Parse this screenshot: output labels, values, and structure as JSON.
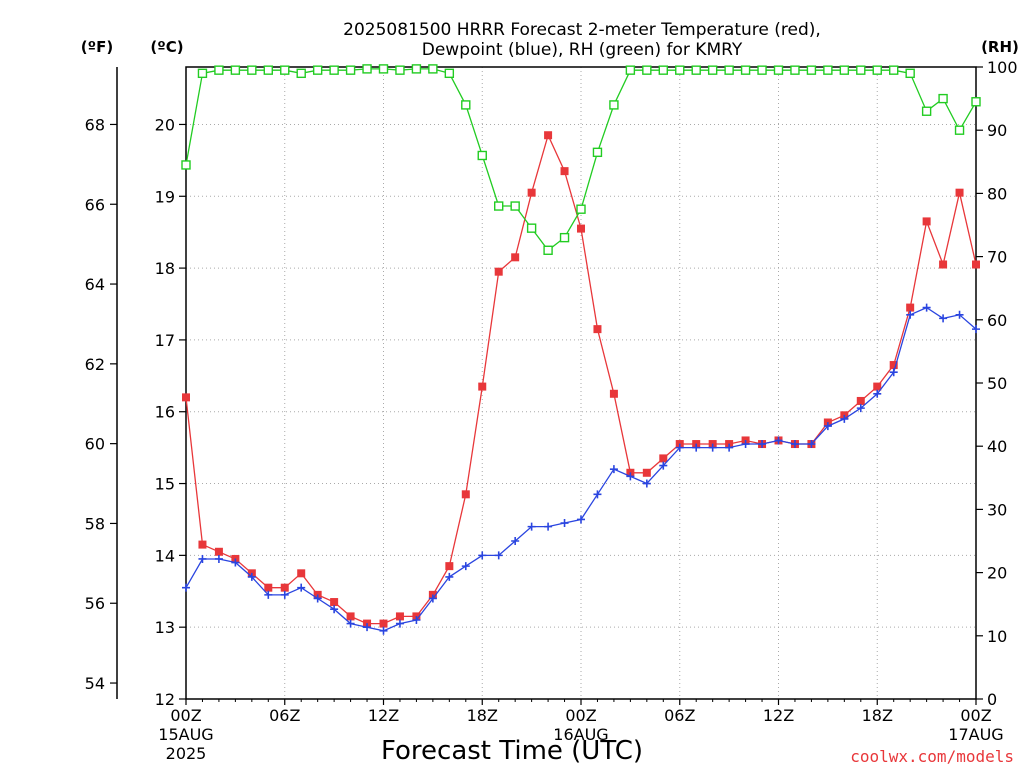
{
  "chart_data": {
    "type": "line",
    "title_line1": "2025081500 HRRR Forecast 2-meter Temperature (red),",
    "title_line2": "Dewpoint (blue), RH (green) for KMRY",
    "left_outer_label": "(ºF)",
    "left_inner_label": "(ºC)",
    "right_label": "(RH)",
    "xlabel": "Forecast Time (UTC)",
    "credit": "coolwx.com/models",
    "x_ticks": [
      "00Z",
      "06Z",
      "12Z",
      "18Z",
      "00Z",
      "06Z",
      "12Z",
      "18Z",
      "00Z"
    ],
    "x_tick_hours": [
      0,
      6,
      12,
      18,
      24,
      30,
      36,
      42,
      48
    ],
    "date_labels": [
      {
        "hour": 0,
        "line1": "15AUG",
        "line2": "2025"
      },
      {
        "hour": 24,
        "line1": "16AUG",
        "line2": ""
      },
      {
        "hour": 48,
        "line1": "17AUG",
        "line2": ""
      }
    ],
    "xlim": [
      0,
      48
    ],
    "ylim_c": [
      12,
      20.8
    ],
    "ylim_rh": [
      0,
      100
    ],
    "yticks_c": [
      12,
      13,
      14,
      15,
      16,
      17,
      18,
      19,
      20
    ],
    "yticks_f": [
      54,
      56,
      58,
      60,
      62,
      64,
      66,
      68
    ],
    "yticks_rh": [
      0,
      10,
      20,
      30,
      40,
      50,
      60,
      70,
      80,
      90,
      100
    ],
    "grid": true,
    "colors": {
      "temperature": "#e8373a",
      "dewpoint": "#2a45e0",
      "rh": "#22cc22"
    },
    "x_hours": [
      0,
      1,
      2,
      3,
      4,
      5,
      6,
      7,
      8,
      9,
      10,
      11,
      12,
      13,
      14,
      15,
      16,
      17,
      18,
      19,
      20,
      21,
      22,
      23,
      24,
      25,
      26,
      27,
      28,
      29,
      30,
      31,
      32,
      33,
      34,
      35,
      36,
      37,
      38,
      39,
      40,
      41,
      42,
      43,
      44,
      45,
      46,
      47,
      48
    ],
    "series": [
      {
        "key": "temperature",
        "values": [
          16.2,
          14.15,
          14.05,
          13.95,
          13.75,
          13.55,
          13.55,
          13.75,
          13.45,
          13.35,
          13.15,
          13.05,
          13.05,
          13.15,
          13.15,
          13.45,
          13.85,
          14.85,
          16.35,
          17.95,
          18.15,
          19.05,
          19.85,
          19.35,
          18.55,
          17.15,
          16.25,
          15.15,
          15.15,
          15.35,
          15.55,
          15.55,
          15.55,
          15.55,
          15.6,
          15.55,
          15.6,
          15.55,
          15.55,
          15.85,
          15.95,
          16.15,
          16.35,
          16.65,
          17.45,
          18.65,
          18.05,
          19.05,
          18.05
        ]
      },
      {
        "key": "dewpoint",
        "values": [
          13.55,
          13.95,
          13.95,
          13.9,
          13.7,
          13.45,
          13.45,
          13.55,
          13.4,
          13.25,
          13.05,
          13.0,
          12.95,
          13.05,
          13.1,
          13.4,
          13.7,
          13.85,
          14.0,
          14.0,
          14.2,
          14.4,
          14.4,
          14.45,
          14.5,
          14.85,
          15.2,
          15.1,
          15.0,
          15.25,
          15.5,
          15.5,
          15.5,
          15.5,
          15.55,
          15.55,
          15.6,
          15.55,
          15.55,
          15.8,
          15.9,
          16.05,
          16.25,
          16.55,
          17.35,
          17.45,
          17.3,
          17.35,
          17.15
        ]
      },
      {
        "key": "rh",
        "values": [
          84.5,
          99.0,
          99.5,
          99.5,
          99.5,
          99.5,
          99.5,
          99.0,
          99.5,
          99.5,
          99.5,
          99.7,
          99.7,
          99.5,
          99.7,
          99.7,
          99.0,
          94.0,
          86.0,
          78.0,
          78.0,
          74.5,
          71.0,
          73.0,
          77.5,
          86.5,
          94.0,
          99.5,
          99.5,
          99.5,
          99.5,
          99.5,
          99.5,
          99.5,
          99.5,
          99.5,
          99.5,
          99.5,
          99.5,
          99.5,
          99.5,
          99.5,
          99.5,
          99.5,
          99.0,
          93.0,
          95.0,
          90.0,
          94.5
        ]
      }
    ]
  }
}
